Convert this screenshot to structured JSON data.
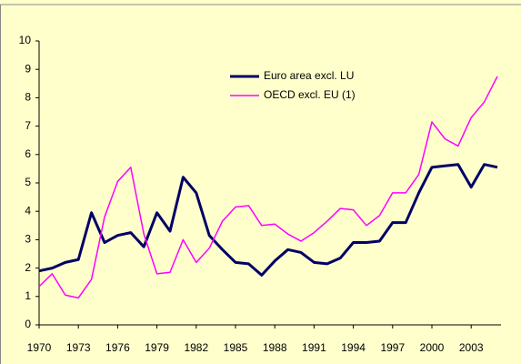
{
  "chart_data": {
    "type": "line",
    "x": [
      1970,
      1971,
      1972,
      1973,
      1974,
      1975,
      1976,
      1977,
      1978,
      1979,
      1980,
      1981,
      1982,
      1983,
      1984,
      1985,
      1986,
      1987,
      1988,
      1989,
      1990,
      1991,
      1992,
      1993,
      1994,
      1995,
      1996,
      1997,
      1998,
      1999,
      2000,
      2001,
      2002,
      2003,
      2004,
      2005
    ],
    "series": [
      {
        "name": "Euro area excl. LU",
        "color": "#000066",
        "values": [
          1.9,
          2.0,
          2.2,
          2.3,
          3.95,
          2.9,
          3.15,
          3.25,
          2.75,
          3.95,
          3.3,
          5.2,
          4.65,
          3.15,
          2.65,
          2.2,
          2.15,
          1.75,
          2.25,
          2.65,
          2.55,
          2.2,
          2.15,
          2.35,
          2.9,
          2.9,
          2.95,
          3.6,
          3.6,
          4.65,
          5.55,
          5.6,
          5.65,
          4.85,
          5.65,
          5.55
        ]
      },
      {
        "name": "OECD excl. EU (1)",
        "color": "#ff00ff",
        "values": [
          1.35,
          1.8,
          1.05,
          0.95,
          1.6,
          3.8,
          5.05,
          5.55,
          3.2,
          1.8,
          1.85,
          3.0,
          2.2,
          2.7,
          3.65,
          4.15,
          4.2,
          3.5,
          3.55,
          3.2,
          2.95,
          3.25,
          3.65,
          4.1,
          4.05,
          3.5,
          3.85,
          4.65,
          4.65,
          5.3,
          7.15,
          6.55,
          6.3,
          7.3,
          7.85,
          8.75
        ]
      }
    ],
    "xlim": [
      1970,
      2005
    ],
    "xticks": [
      1970,
      1973,
      1976,
      1979,
      1982,
      1985,
      1988,
      1991,
      1994,
      1997,
      2000,
      2003
    ],
    "ylim": [
      0,
      10
    ],
    "yticks": [
      0,
      1,
      2,
      3,
      4,
      5,
      6,
      7,
      8,
      9,
      10
    ],
    "grid": false,
    "legend": "top"
  }
}
